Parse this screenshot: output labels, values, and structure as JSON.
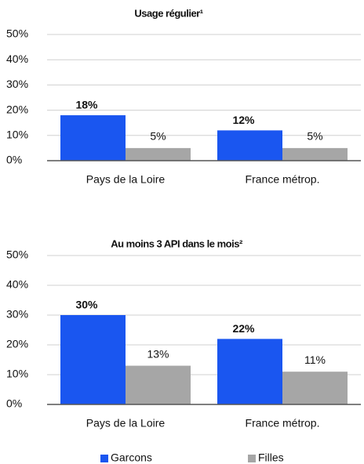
{
  "chart_data": [
    {
      "type": "bar",
      "title": "Usage régulier¹",
      "categories": [
        "Pays de la Loire",
        "France métrop."
      ],
      "series": [
        {
          "name": "Garcons",
          "color": "#1a56f0",
          "values": [
            18,
            12
          ],
          "value_labels": [
            "18%",
            "12%"
          ]
        },
        {
          "name": "Filles",
          "color": "#a6a6a6",
          "values": [
            5,
            5
          ],
          "value_labels": [
            "5%",
            "5%"
          ]
        }
      ],
      "ylim": [
        0,
        50
      ],
      "yticks": [
        {
          "value": 0,
          "label": "0%"
        },
        {
          "value": 10,
          "label": "10%"
        },
        {
          "value": 20,
          "label": "20%"
        },
        {
          "value": 30,
          "label": "30%"
        },
        {
          "value": 40,
          "label": "40%"
        },
        {
          "value": 50,
          "label": "50%"
        }
      ],
      "grid": true
    },
    {
      "type": "bar",
      "title": "Au moins 3 API dans le mois²",
      "categories": [
        "Pays de la Loire",
        "France métrop."
      ],
      "series": [
        {
          "name": "Garcons",
          "color": "#1a56f0",
          "values": [
            30,
            22
          ],
          "value_labels": [
            "30%",
            "22%"
          ]
        },
        {
          "name": "Filles",
          "color": "#a6a6a6",
          "values": [
            13,
            11
          ],
          "value_labels": [
            "13%",
            "11%"
          ]
        }
      ],
      "ylim": [
        0,
        50
      ],
      "yticks": [
        {
          "value": 0,
          "label": "0%"
        },
        {
          "value": 10,
          "label": "10%"
        },
        {
          "value": 20,
          "label": "20%"
        },
        {
          "value": 30,
          "label": "30%"
        },
        {
          "value": 40,
          "label": "40%"
        },
        {
          "value": 50,
          "label": "50%"
        }
      ],
      "grid": true,
      "legend": "bottom"
    }
  ]
}
